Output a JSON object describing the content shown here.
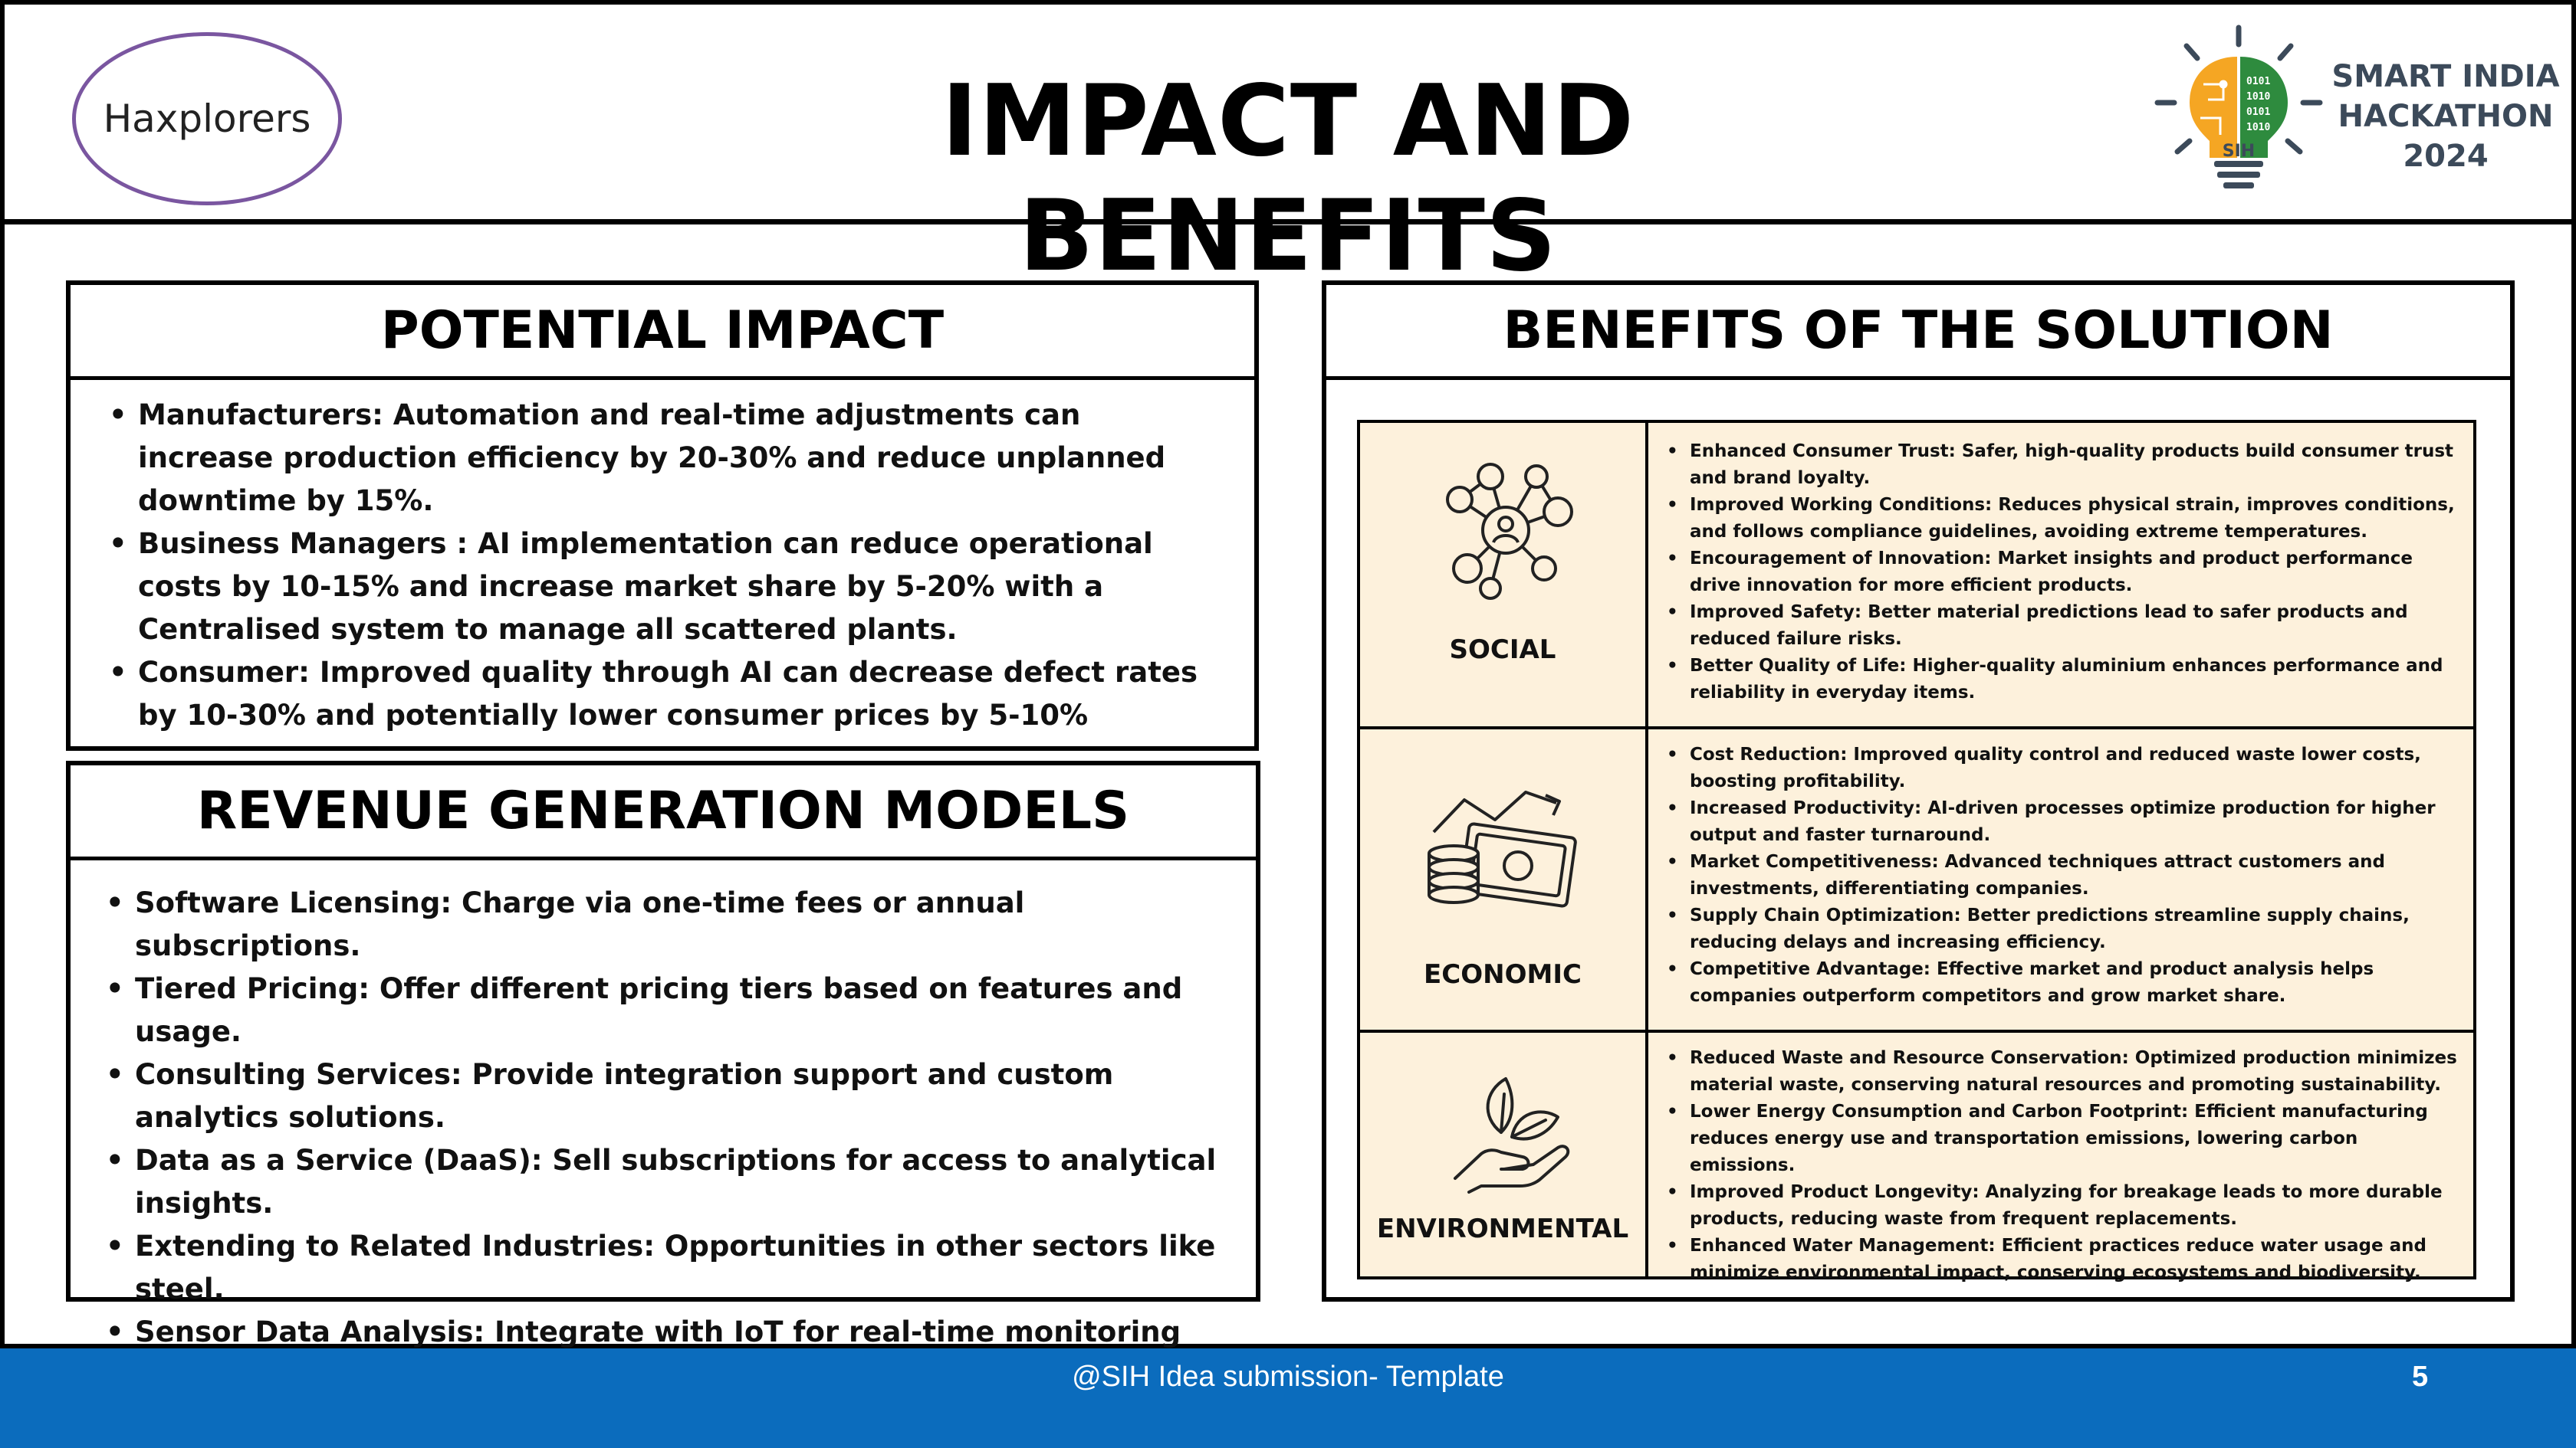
{
  "header": {
    "team_name": "Haxplorers",
    "title": "IMPACT AND BENEFITS",
    "logo": {
      "line1": "SMART INDIA",
      "line2": "HACKATHON",
      "line3": "2024",
      "badge": "SIH",
      "colors": {
        "orange": "#f5a623",
        "green": "#2e8b3e",
        "text": "#3c4a5a"
      }
    }
  },
  "impact": {
    "heading": "POTENTIAL IMPACT",
    "items": [
      "Manufacturers: Automation and real-time adjustments can increase production efficiency by 20-30% and reduce unplanned downtime by 15%.",
      "Business Managers : AI implementation can reduce operational costs by 10-15% and increase market share by 5-20% with a Centralised system to manage all scattered plants.",
      "Consumer: Improved quality through AI can decrease defect rates by 10-30% and potentially lower consumer prices by 5-10%"
    ]
  },
  "revenue": {
    "heading": "REVENUE GENERATION MODELS",
    "items": [
      "Software Licensing: Charge via one-time fees or annual subscriptions.",
      "Tiered Pricing: Offer different pricing tiers based on features and usage.",
      "Consulting Services: Provide integration support and custom analytics solutions.",
      "Data as a Service (DaaS): Sell subscriptions for access to analytical insights.",
      "Extending to Related Industries: Opportunities in other sectors like steel.",
      "Sensor Data Analysis: Integrate with IoT for real-time monitoring and charge for setup and services."
    ]
  },
  "benefits": {
    "heading": "BENEFITS OF THE SOLUTION",
    "rows": [
      {
        "label": "SOCIAL",
        "icon": "people-network-icon",
        "items": [
          "Enhanced Consumer Trust: Safer, high-quality products build consumer trust and brand loyalty.",
          "Improved Working Conditions: Reduces physical strain, improves conditions, and follows compliance guidelines, avoiding extreme temperatures.",
          "Encouragement of Innovation: Market insights and product performance drive innovation for more efficient products.",
          "Improved Safety: Better material predictions lead to safer products and reduced failure risks.",
          "Better Quality of Life: Higher-quality aluminium enhances performance and reliability in everyday items."
        ]
      },
      {
        "label": "ECONOMIC",
        "icon": "money-growth-icon",
        "items": [
          "Cost Reduction: Improved quality control and reduced waste lower costs, boosting profitability.",
          "Increased Productivity: AI-driven processes optimize production for higher output and faster turnaround.",
          "Market Competitiveness: Advanced techniques attract customers and investments, differentiating companies.",
          "Supply Chain Optimization: Better predictions streamline supply chains, reducing delays and increasing efficiency.",
          "Competitive Advantage: Effective market and product analysis helps companies outperform competitors and grow market share."
        ]
      },
      {
        "label": "ENVIRONMENTAL",
        "icon": "hand-leaves-icon",
        "items": [
          "Reduced Waste and Resource Conservation: Optimized production minimizes material waste, conserving natural resources and promoting sustainability.",
          "Lower Energy Consumption and Carbon Footprint: Efficient manufacturing reduces energy use and transportation emissions, lowering carbon emissions.",
          "Improved Product Longevity: Analyzing for breakage leads to more durable products, reducing waste from frequent replacements.",
          "Enhanced Water Management: Efficient practices reduce water usage and minimize environmental impact, conserving ecosystems and biodiversity."
        ]
      }
    ],
    "cell_color": "#fdf1dc"
  },
  "footer": {
    "text": "@SIH Idea submission- Template",
    "page": "5",
    "color": "#0b6cbd"
  }
}
